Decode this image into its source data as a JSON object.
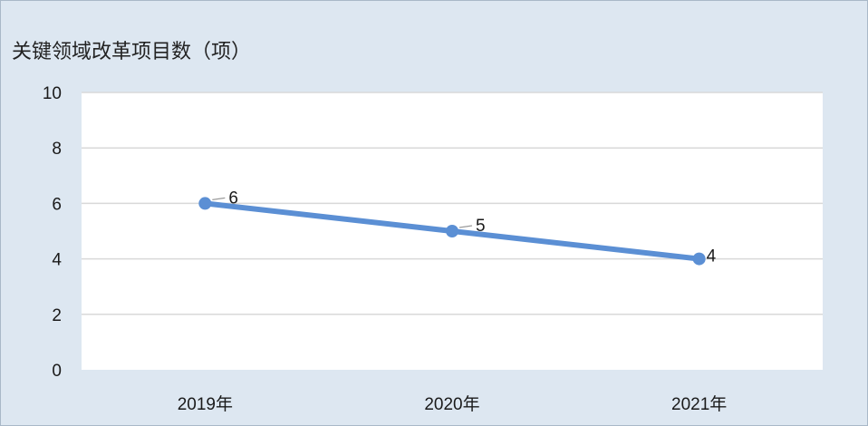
{
  "chart_data": {
    "type": "line",
    "title": "关键领域改革项目数（项）",
    "categories": [
      "2019年",
      "2020年",
      "2021年"
    ],
    "series": [
      {
        "values": [
          6,
          5,
          4
        ],
        "color": "#5b8fd4"
      }
    ],
    "data_labels": [
      "6",
      "5",
      "4"
    ],
    "ylim": [
      0,
      10
    ],
    "yticks": [
      "0",
      "2",
      "4",
      "6",
      "8",
      "10"
    ],
    "grid": true,
    "legend": "none",
    "plot_background": "#ffffff",
    "chart_background": "#dde7f1"
  }
}
